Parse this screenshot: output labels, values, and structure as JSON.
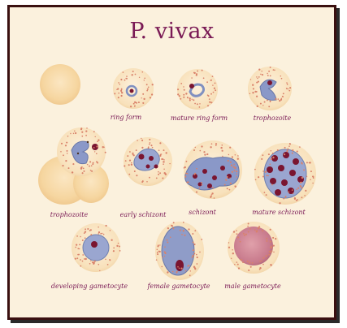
{
  "title": "P. vivax",
  "labels": {
    "ring_form": "ring form",
    "mature_ring_form": "mature ring form",
    "trophozoite_top": "trophozoite",
    "trophozoite_left": "trophozoite",
    "early_schizont": "early schizont",
    "schizont": "schizont",
    "mature_schizont": "mature schizont",
    "developing_gametocyte": "developing gametocyte",
    "female_gametocyte": "female gametocyte",
    "male_gametocyte": "male gametocyte"
  },
  "colors": {
    "rbc_fill": "#f5d7a0",
    "stippling": "#d9826a",
    "parasite_blue": "#8090c0",
    "chromatin": "#7a1530",
    "label": "#7a1a55",
    "frame": "#3a1010",
    "background": "#fbf1dd"
  }
}
